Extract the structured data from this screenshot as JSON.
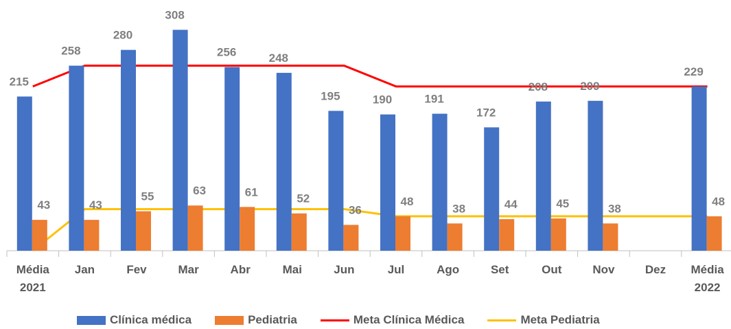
{
  "chart_data": {
    "type": "bar",
    "categories": [
      "Média\n2021",
      "Jan",
      "Fev",
      "Mar",
      "Abr",
      "Mai",
      "Jun",
      "Jul",
      "Ago",
      "Set",
      "Out",
      "Nov",
      "Dez",
      "Média\n2022"
    ],
    "series": [
      {
        "name": "Clínica médica",
        "type": "bar",
        "color": "#4472c4",
        "values": [
          215,
          258,
          280,
          308,
          256,
          248,
          195,
          190,
          191,
          172,
          208,
          209,
          null,
          229
        ]
      },
      {
        "name": "Pediatria",
        "type": "bar",
        "color": "#ed7d31",
        "values": [
          43,
          43,
          55,
          63,
          61,
          52,
          36,
          48,
          38,
          44,
          45,
          38,
          null,
          48
        ]
      },
      {
        "name": "Meta Clínica Médica",
        "type": "line",
        "color": "#ff0000",
        "values": [
          229,
          258,
          258,
          258,
          258,
          258,
          258,
          229,
          229,
          229,
          229,
          229,
          229,
          229
        ]
      },
      {
        "name": "Meta Pediatria",
        "type": "line",
        "color": "#ffc000",
        "values": [
          0,
          58,
          58,
          58,
          58,
          58,
          58,
          48,
          48,
          48,
          48,
          48,
          48,
          48
        ]
      }
    ],
    "ylim": [
      0,
      340
    ],
    "legend": "bottom"
  }
}
